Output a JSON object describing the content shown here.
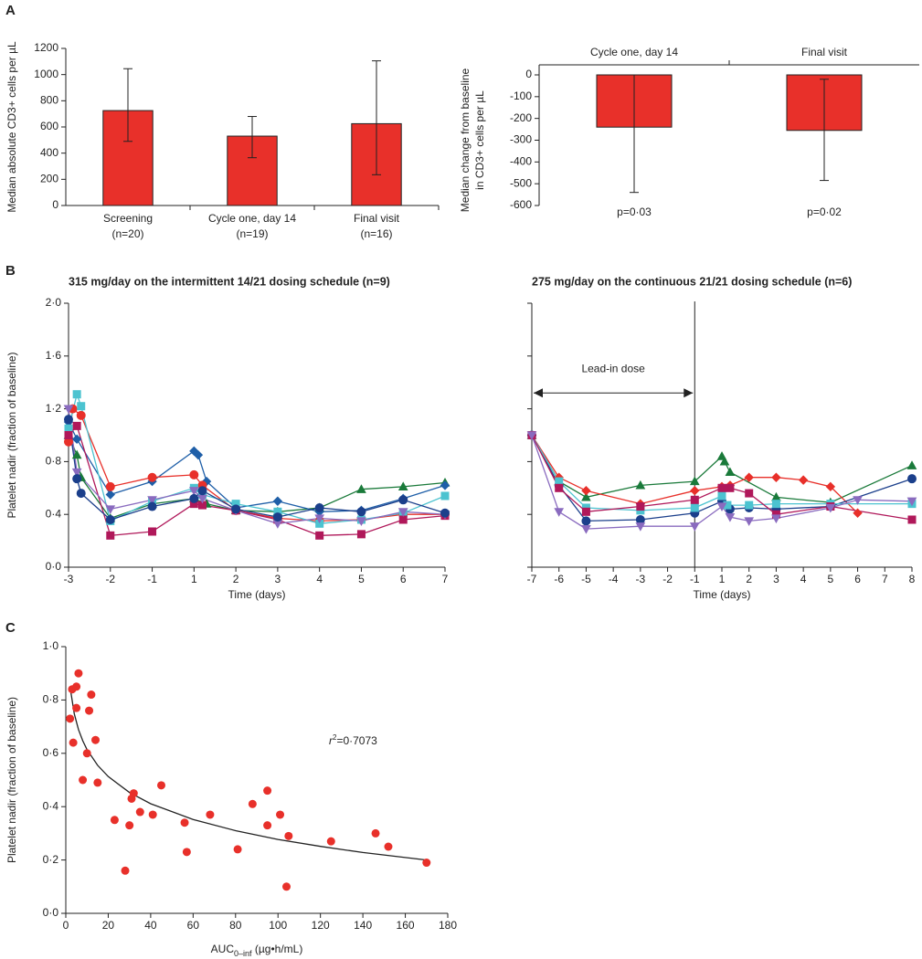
{
  "panel_labels": [
    "A",
    "B",
    "C"
  ],
  "chart_data": [
    {
      "type": "bar",
      "ylabel": [
        "Median absolute CD3+ cells per µL"
      ],
      "categories": [
        "Screening",
        "Cycle one, day 14",
        "Final visit"
      ],
      "n_labels": [
        "(n=20)",
        "(n=19)",
        "(n=16)"
      ],
      "values": [
        725,
        530,
        625
      ],
      "ci_low": [
        490,
        365,
        235
      ],
      "ci_high": [
        1045,
        680,
        1105
      ],
      "color": "#e8302a",
      "category_position": "bottom",
      "ylim": [
        0,
        1200
      ],
      "yticks": [
        0,
        200,
        400,
        600,
        800,
        1000,
        1200
      ]
    },
    {
      "type": "bar",
      "ylabel": [
        "Median change from baseline",
        "in CD3+ cells per µL"
      ],
      "categories": [
        "Cycle one, day 14",
        "Final visit"
      ],
      "values": [
        -240,
        -255
      ],
      "ci_low": [
        -540,
        -485
      ],
      "ci_high": [
        0,
        -20
      ],
      "p_values": [
        "p=0·03",
        "p=0·02"
      ],
      "color": "#e8302a",
      "category_position": "top",
      "ylim": [
        -600,
        0
      ],
      "yticks": [
        0,
        -100,
        -200,
        -300,
        -400,
        -500,
        -600
      ]
    },
    {
      "type": "line",
      "title": "315 mg/day on the intermittent 14/21 dosing schedule (n=9)",
      "ylabel": [
        "Platelet nadir (fraction of baseline)"
      ],
      "xlabel": "Time (days)",
      "x_skip_zero": true,
      "show_ytick_labels": true,
      "xlim": [
        -3,
        7
      ],
      "xticks": [
        -3,
        -2,
        -1,
        1,
        2,
        3,
        4,
        5,
        6,
        7
      ],
      "ylim": [
        0,
        2.0
      ],
      "yticks": [
        {
          "value": 0,
          "label": "0·0"
        },
        {
          "value": 0.4,
          "label": "0·4"
        },
        {
          "value": 0.8,
          "label": "0·8"
        },
        {
          "value": 1.2,
          "label": "1·2"
        },
        {
          "value": 1.6,
          "label": "1·6"
        },
        {
          "value": 2.0,
          "label": "2·0"
        }
      ],
      "series": [
        {
          "color": "#1a7a3a",
          "marker": "triangle",
          "x": [
            -3,
            -2.8,
            -2.7,
            -2,
            -1,
            1,
            1.3,
            2,
            3,
            4,
            5,
            6,
            7
          ],
          "values": [
            1.0,
            0.85,
            0.68,
            0.37,
            0.48,
            0.52,
            0.48,
            0.43,
            0.42,
            0.45,
            0.59,
            0.61,
            0.64
          ]
        },
        {
          "color": "#1f5fa8",
          "marker": "diamond",
          "x": [
            -3,
            -2.8,
            -2,
            -1,
            1,
            1.1,
            1.3,
            2,
            3,
            4,
            5,
            6,
            7
          ],
          "values": [
            1.1,
            0.97,
            0.55,
            0.65,
            0.88,
            0.85,
            0.65,
            0.45,
            0.5,
            0.42,
            0.43,
            0.52,
            0.62
          ]
        },
        {
          "color": "#e8302a",
          "marker": "circle",
          "x": [
            -3,
            -2.9,
            -2.7,
            -2,
            -1,
            1,
            1.2,
            2,
            3,
            4,
            5,
            6,
            7
          ],
          "values": [
            0.95,
            1.2,
            1.15,
            0.61,
            0.68,
            0.7,
            0.62,
            0.43,
            0.37,
            0.35,
            0.36,
            0.4,
            0.4
          ]
        },
        {
          "color": "#4cc3d0",
          "marker": "square",
          "x": [
            -3,
            -2.8,
            -2.7,
            -2,
            -1,
            1,
            1.2,
            2,
            3,
            4,
            5,
            6,
            7
          ],
          "values": [
            1.05,
            1.31,
            1.22,
            0.35,
            0.5,
            0.6,
            0.55,
            0.48,
            0.42,
            0.33,
            0.36,
            0.41,
            0.54
          ]
        },
        {
          "color": "#b0185a",
          "marker": "square",
          "x": [
            -3,
            -2.8,
            -2,
            -1,
            1,
            1.2,
            2,
            3,
            4,
            5,
            6,
            7
          ],
          "values": [
            1.0,
            1.07,
            0.24,
            0.27,
            0.48,
            0.47,
            0.43,
            0.36,
            0.24,
            0.25,
            0.36,
            0.39
          ]
        },
        {
          "color": "#8a6bbf",
          "marker": "triangle-down",
          "x": [
            -3,
            -2.8,
            -2,
            -1,
            1,
            1.2,
            2,
            3,
            4,
            5,
            6,
            7
          ],
          "values": [
            1.2,
            0.72,
            0.44,
            0.51,
            0.58,
            0.52,
            0.43,
            0.33,
            0.37,
            0.35,
            0.42,
            0.4
          ]
        },
        {
          "color": "#1b3f8b",
          "marker": "circle",
          "x": [
            -3,
            -2.8,
            -2.7,
            -2,
            -1,
            1,
            1.2,
            2,
            3,
            4,
            5,
            6,
            7
          ],
          "values": [
            1.12,
            0.67,
            0.56,
            0.36,
            0.46,
            0.52,
            0.58,
            0.44,
            0.38,
            0.45,
            0.42,
            0.51,
            0.41
          ]
        }
      ]
    },
    {
      "type": "line",
      "title": "275 mg/day on the continuous 21/21 dosing schedule (n=6)",
      "xlabel": "Time (days)",
      "x_skip_zero": true,
      "show_ytick_labels": false,
      "xlim": [
        -7,
        8
      ],
      "xticks": [
        -7,
        -6,
        -5,
        -4,
        -3,
        -2,
        -1,
        1,
        2,
        3,
        4,
        5,
        6,
        7,
        8
      ],
      "ylim": [
        0,
        2.0
      ],
      "yticks": [
        0,
        0.4,
        0.8,
        1.2,
        1.6,
        2.0
      ],
      "vline": -1,
      "annotation": {
        "text": "Lead-in dose",
        "x_start": -7,
        "x_end": -1,
        "y": 1.32
      },
      "series": [
        {
          "color": "#1a7a3a",
          "marker": "triangle",
          "x": [
            -7,
            -6,
            -5,
            -3,
            -1,
            1,
            1.1,
            1.3,
            3,
            5,
            8
          ],
          "values": [
            1.0,
            0.65,
            0.53,
            0.62,
            0.65,
            0.84,
            0.8,
            0.72,
            0.53,
            0.49,
            0.77
          ]
        },
        {
          "color": "#e8302a",
          "marker": "diamond",
          "x": [
            -7,
            -6,
            -5,
            -3,
            -1,
            1,
            1.3,
            2,
            3,
            4,
            5,
            6
          ],
          "values": [
            1.0,
            0.68,
            0.58,
            0.48,
            0.58,
            0.61,
            0.62,
            0.68,
            0.68,
            0.66,
            0.61,
            0.41
          ]
        },
        {
          "color": "#1b3f8b",
          "marker": "circle",
          "x": [
            -7,
            -6,
            -5,
            -3,
            -1,
            1,
            1.3,
            2,
            3,
            5,
            8
          ],
          "values": [
            1.0,
            0.62,
            0.35,
            0.36,
            0.41,
            0.5,
            0.44,
            0.45,
            0.44,
            0.46,
            0.67
          ]
        },
        {
          "color": "#4cc3d0",
          "marker": "square",
          "x": [
            -7,
            -6,
            -5,
            -3,
            -1,
            1,
            1.2,
            2,
            3,
            5,
            8
          ],
          "values": [
            1.0,
            0.65,
            0.45,
            0.43,
            0.45,
            0.54,
            0.47,
            0.47,
            0.48,
            0.48,
            0.48
          ]
        },
        {
          "color": "#b0185a",
          "marker": "square",
          "x": [
            -7,
            -6,
            -5,
            -3,
            -1,
            1,
            1.3,
            2,
            3,
            5,
            8
          ],
          "values": [
            1.0,
            0.6,
            0.42,
            0.46,
            0.51,
            0.6,
            0.6,
            0.56,
            0.4,
            0.46,
            0.36
          ]
        },
        {
          "color": "#8a6bbf",
          "marker": "triangle-down",
          "x": [
            -7,
            -6,
            -5,
            -3,
            -1,
            1,
            1.3,
            2,
            3,
            5,
            6,
            8
          ],
          "values": [
            1.0,
            0.42,
            0.29,
            0.31,
            0.31,
            0.46,
            0.38,
            0.35,
            0.37,
            0.45,
            0.51,
            0.5
          ]
        }
      ]
    },
    {
      "type": "scatter",
      "ylabel": [
        "Platelet nadir (fraction of baseline)"
      ],
      "xlabel": "AUC",
      "xlabel_sub": "0–inf",
      "xlabel_units": " (µg•h/mL)",
      "annotation": {
        "italic": "r",
        "sup": "2",
        "text": "=0·7073"
      },
      "color": "#e8302a",
      "xlim": [
        0,
        180
      ],
      "xticks": [
        0,
        20,
        40,
        60,
        80,
        100,
        120,
        140,
        160,
        180
      ],
      "ylim": [
        0,
        1.0
      ],
      "yticks": [
        {
          "value": 0,
          "label": "0·0"
        },
        {
          "value": 0.2,
          "label": "0·2"
        },
        {
          "value": 0.4,
          "label": "0·4"
        },
        {
          "value": 0.6,
          "label": "0·6"
        },
        {
          "value": 0.8,
          "label": "0·8"
        },
        {
          "value": 1.0,
          "label": "1·0"
        }
      ],
      "x": [
        2,
        3,
        3.5,
        5,
        5,
        6,
        8,
        10,
        11,
        12,
        14,
        15,
        23,
        28,
        30,
        31,
        32,
        35,
        41,
        45,
        56,
        57,
        68,
        81,
        88,
        95,
        95,
        101,
        104,
        105,
        125,
        146,
        152,
        170
      ],
      "values": [
        0.73,
        0.84,
        0.64,
        0.77,
        0.85,
        0.9,
        0.5,
        0.6,
        0.76,
        0.82,
        0.65,
        0.49,
        0.35,
        0.16,
        0.33,
        0.43,
        0.45,
        0.38,
        0.37,
        0.48,
        0.34,
        0.23,
        0.37,
        0.24,
        0.41,
        0.46,
        0.33,
        0.37,
        0.1,
        0.29,
        0.27,
        0.3,
        0.25,
        0.19
      ],
      "fit_curve": {
        "x": [
          2,
          4,
          6,
          8,
          10,
          15,
          20,
          30,
          40,
          60,
          80,
          100,
          120,
          140,
          170
        ],
        "values": [
          0.85,
          0.748,
          0.689,
          0.647,
          0.614,
          0.555,
          0.513,
          0.453,
          0.411,
          0.352,
          0.31,
          0.277,
          0.251,
          0.228,
          0.2
        ]
      }
    }
  ]
}
